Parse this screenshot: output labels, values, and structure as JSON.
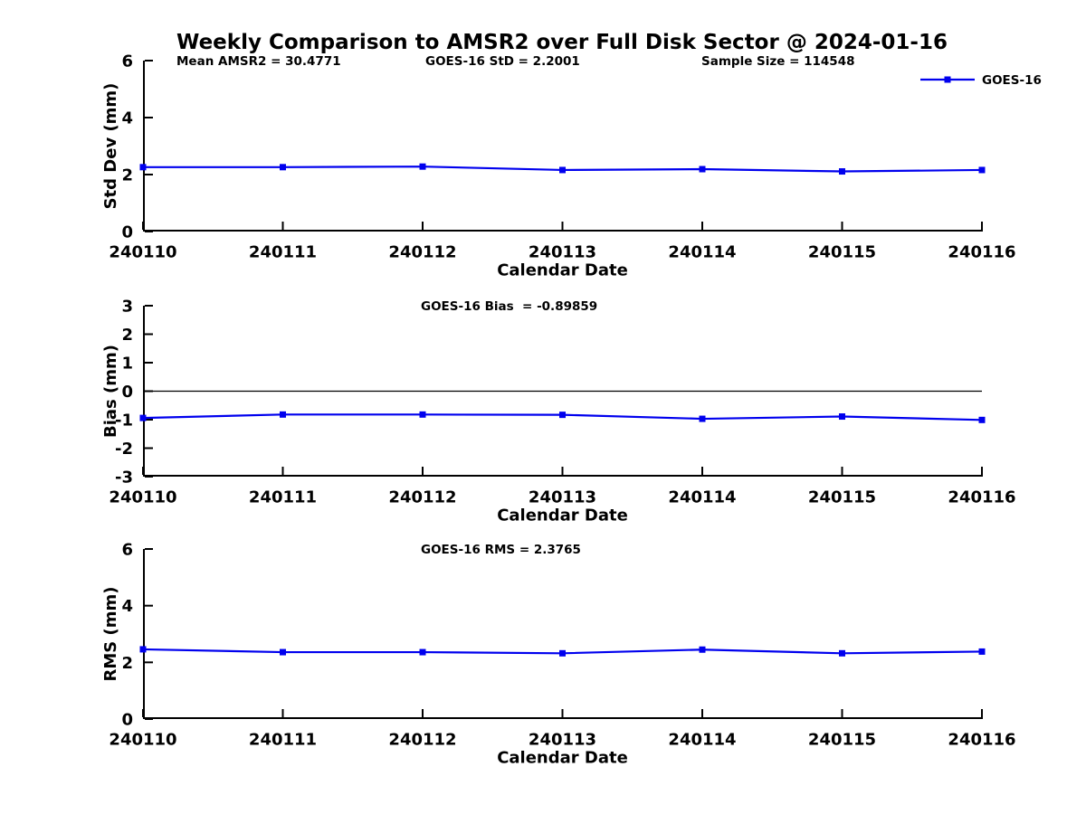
{
  "figure": {
    "title": "Weekly Comparison to AMSR2 over Full Disk Sector @ 2024-01-16",
    "annotations": {
      "mean_amsr2": "Mean AMSR2 = 30.4771",
      "goes16_std": "GOES-16 StD = 2.2001",
      "sample_size": "Sample Size = 114548"
    },
    "legend": {
      "label": "GOES-16",
      "position": "top-right",
      "line_color": "#0000ee",
      "marker": "filled-square"
    }
  },
  "chart_data": [
    {
      "type": "line",
      "name": "std-dev-vs-date",
      "title": "",
      "categories": [
        "240110",
        "240111",
        "240112",
        "240113",
        "240114",
        "240115",
        "240116"
      ],
      "series": [
        {
          "name": "GOES-16",
          "color": "#0000ee",
          "marker": "square",
          "values": [
            2.26,
            2.26,
            2.28,
            2.16,
            2.19,
            2.11,
            2.16
          ]
        }
      ],
      "xlabel": "Calendar Date",
      "ylabel": "Std Dev (mm)",
      "ylim": [
        0,
        6
      ],
      "yticks": [
        0,
        2,
        4,
        6
      ],
      "grid": false,
      "zero_line": false,
      "annotation": ""
    },
    {
      "type": "line",
      "name": "bias-vs-date",
      "title": "",
      "categories": [
        "240110",
        "240111",
        "240112",
        "240113",
        "240114",
        "240115",
        "240116"
      ],
      "series": [
        {
          "name": "GOES-16",
          "color": "#0000ee",
          "marker": "square",
          "values": [
            -0.94,
            -0.82,
            -0.82,
            -0.83,
            -0.97,
            -0.89,
            -1.01
          ]
        }
      ],
      "xlabel": "Calendar Date",
      "ylabel": "Bias (mm)",
      "ylim": [
        -3,
        3
      ],
      "yticks": [
        -3,
        -2,
        -1,
        0,
        1,
        2,
        3
      ],
      "grid": false,
      "zero_line": true,
      "annotation": "GOES-16 Bias  = -0.89859"
    },
    {
      "type": "line",
      "name": "rms-vs-date",
      "title": "",
      "categories": [
        "240110",
        "240111",
        "240112",
        "240113",
        "240114",
        "240115",
        "240116"
      ],
      "series": [
        {
          "name": "GOES-16",
          "color": "#0000ee",
          "marker": "square",
          "values": [
            2.46,
            2.36,
            2.36,
            2.32,
            2.45,
            2.32,
            2.38
          ]
        }
      ],
      "xlabel": "Calendar Date",
      "ylabel": "RMS (mm)",
      "ylim": [
        0,
        6
      ],
      "yticks": [
        0,
        2,
        4,
        6
      ],
      "grid": false,
      "zero_line": false,
      "annotation": "GOES-16 RMS = 2.3765"
    }
  ]
}
